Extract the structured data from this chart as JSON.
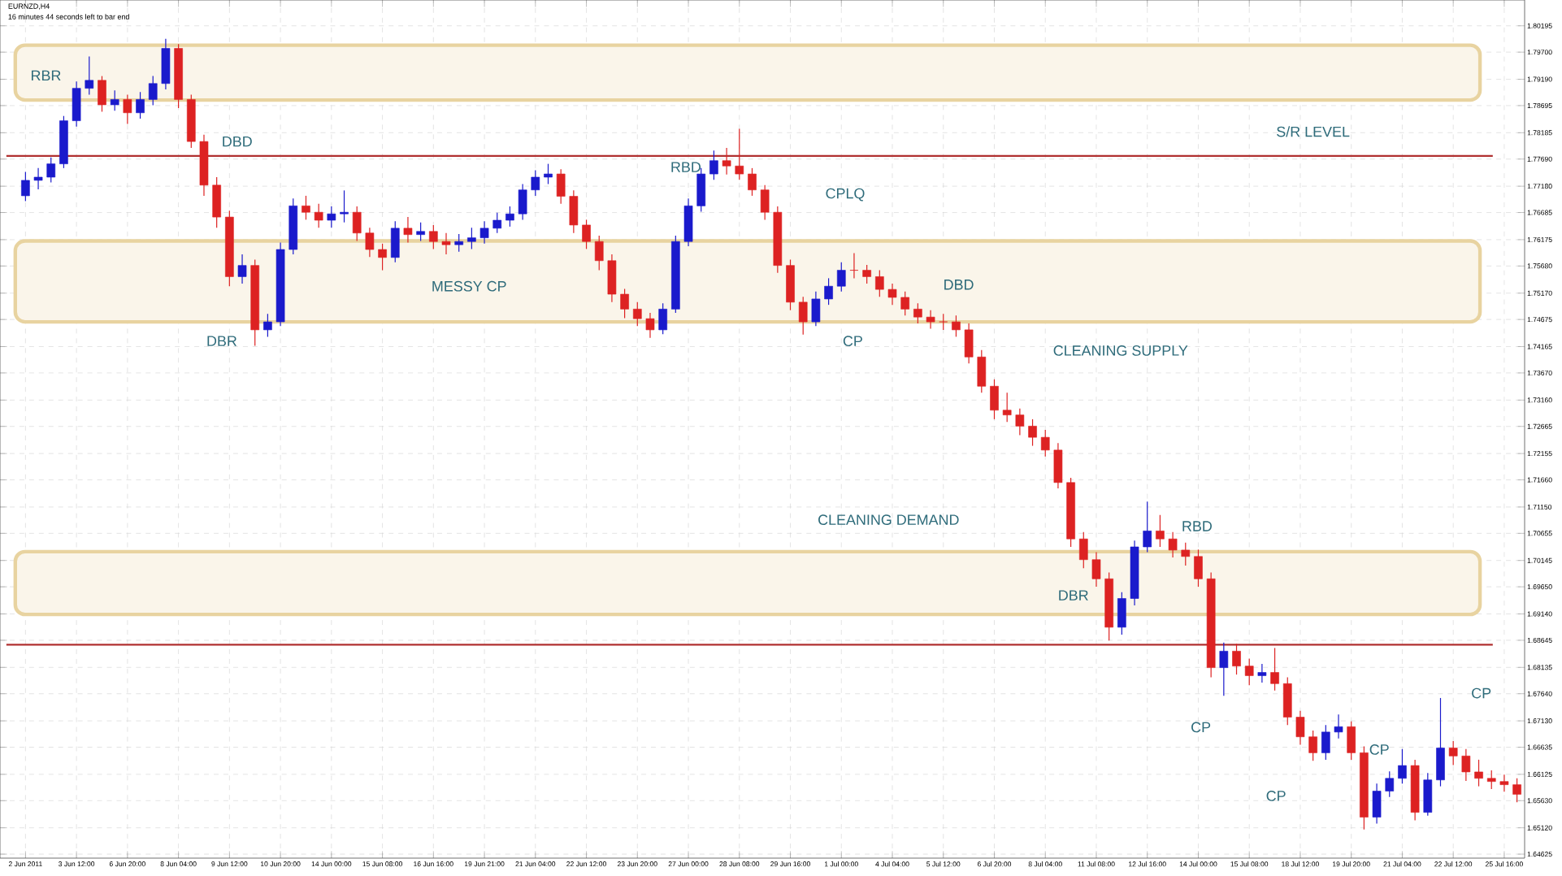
{
  "chart_data": {
    "type": "candlestick",
    "title": "EURNZD,H4",
    "subtitle": "16 minutes 44 seconds left to bar end",
    "categories": [
      "2 Jun 2011",
      null,
      null,
      null,
      "3 Jun 12:00",
      null,
      null,
      null,
      "6 Jun 20:00",
      null,
      null,
      null,
      "8 Jun 04:00",
      null,
      null,
      null,
      "9 Jun 12:00",
      null,
      null,
      null,
      "10 Jun 20:00",
      null,
      null,
      null,
      "14 Jun 00:00",
      null,
      null,
      null,
      "15 Jun 08:00",
      null,
      null,
      null,
      "16 Jun 16:00",
      null,
      null,
      null,
      "19 Jun 21:00",
      null,
      null,
      null,
      "21 Jun 04:00",
      null,
      null,
      null,
      "22 Jun 12:00",
      null,
      null,
      null,
      "23 Jun 20:00",
      null,
      null,
      null,
      "27 Jun 00:00",
      null,
      null,
      null,
      "28 Jun 08:00",
      null,
      null,
      null,
      "29 Jun 16:00",
      null,
      null,
      null,
      "1 Jul 00:00",
      null,
      null,
      null,
      "4 Jul 04:00",
      null,
      null,
      null,
      "5 Jul 12:00",
      null,
      null,
      null,
      "6 Jul 20:00",
      null,
      null,
      null,
      "8 Jul 04:00",
      null,
      null,
      null,
      "11 Jul 08:00",
      null,
      null,
      null,
      "12 Jul 16:00",
      null,
      null,
      null,
      "14 Jul 00:00",
      null,
      null,
      null,
      "15 Jul 08:00",
      null,
      null,
      null,
      "18 Jul 12:00",
      null,
      null,
      null,
      "19 Jul 20:00",
      null,
      null,
      null,
      "21 Jul 04:00",
      null,
      null,
      null,
      "22 Jul 12:00",
      null,
      null,
      null,
      "25 Jul 16:00",
      null
    ],
    "ohlc": [
      [
        1.77,
        1.7745,
        1.769,
        1.7729
      ],
      [
        1.7729,
        1.7752,
        1.7712,
        1.7735
      ],
      [
        1.7735,
        1.7772,
        1.7725,
        1.776
      ],
      [
        1.776,
        1.785,
        1.7752,
        1.7841
      ],
      [
        1.7841,
        1.7915,
        1.783,
        1.7902
      ],
      [
        1.7902,
        1.7962,
        1.789,
        1.7917
      ],
      [
        1.7917,
        1.7925,
        1.7858,
        1.7871
      ],
      [
        1.7871,
        1.7898,
        1.786,
        1.7881
      ],
      [
        1.7881,
        1.789,
        1.7835,
        1.7856
      ],
      [
        1.7856,
        1.7895,
        1.7845,
        1.7881
      ],
      [
        1.7881,
        1.7925,
        1.787,
        1.7911
      ],
      [
        1.7911,
        1.7995,
        1.79,
        1.7977
      ],
      [
        1.7977,
        1.7985,
        1.7865,
        1.7881
      ],
      [
        1.7881,
        1.789,
        1.779,
        1.7802
      ],
      [
        1.7802,
        1.7815,
        1.77,
        1.772
      ],
      [
        1.772,
        1.7735,
        1.764,
        1.766
      ],
      [
        1.766,
        1.7672,
        1.753,
        1.7548
      ],
      [
        1.7548,
        1.759,
        1.7535,
        1.7569
      ],
      [
        1.7569,
        1.758,
        1.7418,
        1.7448
      ],
      [
        1.7448,
        1.7478,
        1.7435,
        1.7463
      ],
      [
        1.7463,
        1.7612,
        1.7455,
        1.7599
      ],
      [
        1.7599,
        1.7695,
        1.759,
        1.7681
      ],
      [
        1.7681,
        1.77,
        1.7655,
        1.7669
      ],
      [
        1.7669,
        1.7685,
        1.764,
        1.7654
      ],
      [
        1.7654,
        1.768,
        1.764,
        1.7666
      ],
      [
        1.7666,
        1.771,
        1.765,
        1.7669
      ],
      [
        1.7669,
        1.768,
        1.7615,
        1.763
      ],
      [
        1.763,
        1.764,
        1.7585,
        1.7599
      ],
      [
        1.7599,
        1.761,
        1.756,
        1.7584
      ],
      [
        1.7584,
        1.7652,
        1.7575,
        1.7639
      ],
      [
        1.7639,
        1.766,
        1.7612,
        1.7627
      ],
      [
        1.7627,
        1.765,
        1.7615,
        1.7633
      ],
      [
        1.7633,
        1.7645,
        1.76,
        1.7614
      ],
      [
        1.7614,
        1.763,
        1.759,
        1.7608
      ],
      [
        1.7608,
        1.7628,
        1.7595,
        1.7614
      ],
      [
        1.7614,
        1.764,
        1.76,
        1.7621
      ],
      [
        1.7621,
        1.7652,
        1.761,
        1.7639
      ],
      [
        1.7639,
        1.7668,
        1.763,
        1.7654
      ],
      [
        1.7654,
        1.768,
        1.7642,
        1.7666
      ],
      [
        1.7666,
        1.7722,
        1.7655,
        1.7711
      ],
      [
        1.7711,
        1.7748,
        1.77,
        1.7735
      ],
      [
        1.7735,
        1.776,
        1.7722,
        1.7741
      ],
      [
        1.7741,
        1.775,
        1.7685,
        1.7699
      ],
      [
        1.7699,
        1.771,
        1.763,
        1.7645
      ],
      [
        1.7645,
        1.7655,
        1.76,
        1.7614
      ],
      [
        1.7614,
        1.7625,
        1.756,
        1.7578
      ],
      [
        1.7578,
        1.759,
        1.75,
        1.7515
      ],
      [
        1.7515,
        1.7525,
        1.747,
        1.7487
      ],
      [
        1.7487,
        1.75,
        1.7455,
        1.7469
      ],
      [
        1.7469,
        1.748,
        1.7433,
        1.7448
      ],
      [
        1.7448,
        1.7498,
        1.744,
        1.7487
      ],
      [
        1.7487,
        1.7625,
        1.748,
        1.7614
      ],
      [
        1.7614,
        1.7695,
        1.7605,
        1.7681
      ],
      [
        1.7681,
        1.7752,
        1.767,
        1.7741
      ],
      [
        1.7741,
        1.7785,
        1.773,
        1.7766
      ],
      [
        1.7766,
        1.779,
        1.774,
        1.7756
      ],
      [
        1.7756,
        1.7826,
        1.773,
        1.7741
      ],
      [
        1.7741,
        1.7752,
        1.77,
        1.7711
      ],
      [
        1.7711,
        1.772,
        1.7655,
        1.7669
      ],
      [
        1.7669,
        1.768,
        1.7555,
        1.7569
      ],
      [
        1.7569,
        1.758,
        1.7485,
        1.75
      ],
      [
        1.75,
        1.751,
        1.7439,
        1.7463
      ],
      [
        1.7463,
        1.752,
        1.7455,
        1.7506
      ],
      [
        1.7506,
        1.7545,
        1.7495,
        1.753
      ],
      [
        1.753,
        1.7575,
        1.752,
        1.756
      ],
      [
        1.756,
        1.7592,
        1.7545,
        1.756
      ],
      [
        1.756,
        1.757,
        1.7535,
        1.7548
      ],
      [
        1.7548,
        1.756,
        1.751,
        1.7524
      ],
      [
        1.7524,
        1.7535,
        1.7495,
        1.7509
      ],
      [
        1.7509,
        1.752,
        1.7475,
        1.7487
      ],
      [
        1.7487,
        1.7498,
        1.746,
        1.7472
      ],
      [
        1.7472,
        1.7485,
        1.745,
        1.7463
      ],
      [
        1.7463,
        1.7478,
        1.7448,
        1.7463
      ],
      [
        1.7463,
        1.7475,
        1.7435,
        1.7448
      ],
      [
        1.7448,
        1.746,
        1.7385,
        1.7397
      ],
      [
        1.7397,
        1.741,
        1.733,
        1.7342
      ],
      [
        1.7342,
        1.7355,
        1.728,
        1.7297
      ],
      [
        1.7297,
        1.733,
        1.7275,
        1.7288
      ],
      [
        1.7288,
        1.73,
        1.725,
        1.7267
      ],
      [
        1.7267,
        1.728,
        1.723,
        1.7246
      ],
      [
        1.7246,
        1.726,
        1.721,
        1.7222
      ],
      [
        1.7222,
        1.7235,
        1.715,
        1.7161
      ],
      [
        1.7161,
        1.717,
        1.704,
        1.7055
      ],
      [
        1.7055,
        1.7068,
        1.7,
        1.7016
      ],
      [
        1.7016,
        1.703,
        1.6965,
        1.698
      ],
      [
        1.698,
        1.6992,
        1.6864,
        1.6889
      ],
      [
        1.6889,
        1.6955,
        1.6875,
        1.6943
      ],
      [
        1.6943,
        1.7052,
        1.693,
        1.704
      ],
      [
        1.704,
        1.7125,
        1.703,
        1.707
      ],
      [
        1.707,
        1.71,
        1.704,
        1.7055
      ],
      [
        1.7055,
        1.7068,
        1.702,
        1.7034
      ],
      [
        1.7034,
        1.7048,
        1.7005,
        1.7022
      ],
      [
        1.7022,
        1.7035,
        1.6965,
        1.698
      ],
      [
        1.698,
        1.6992,
        1.6795,
        1.6813
      ],
      [
        1.6813,
        1.686,
        1.676,
        1.6844
      ],
      [
        1.6844,
        1.6858,
        1.68,
        1.6816
      ],
      [
        1.6816,
        1.683,
        1.678,
        1.6798
      ],
      [
        1.6798,
        1.682,
        1.6785,
        1.6804
      ],
      [
        1.6804,
        1.685,
        1.677,
        1.6783
      ],
      [
        1.6783,
        1.6795,
        1.6705,
        1.672
      ],
      [
        1.672,
        1.6732,
        1.6668,
        1.6683
      ],
      [
        1.6683,
        1.6695,
        1.6638,
        1.6653
      ],
      [
        1.6653,
        1.6705,
        1.664,
        1.6692
      ],
      [
        1.6692,
        1.6725,
        1.668,
        1.6702
      ],
      [
        1.6702,
        1.6712,
        1.664,
        1.6653
      ],
      [
        1.6653,
        1.6665,
        1.6509,
        1.6532
      ],
      [
        1.6532,
        1.6595,
        1.652,
        1.6581
      ],
      [
        1.6581,
        1.6618,
        1.657,
        1.6605
      ],
      [
        1.6605,
        1.666,
        1.6595,
        1.6629
      ],
      [
        1.6629,
        1.664,
        1.6526,
        1.6541
      ],
      [
        1.6541,
        1.6615,
        1.6535,
        1.6602
      ],
      [
        1.6602,
        1.6756,
        1.659,
        1.6662
      ],
      [
        1.6662,
        1.6675,
        1.663,
        1.6647
      ],
      [
        1.6647,
        1.666,
        1.66,
        1.6617
      ],
      [
        1.6617,
        1.664,
        1.659,
        1.6605
      ],
      [
        1.6605,
        1.662,
        1.6585,
        1.6599
      ],
      [
        1.6599,
        1.6612,
        1.658,
        1.6593
      ],
      [
        1.6593,
        1.6605,
        1.656,
        1.6575
      ]
    ],
    "colors": [
      "#1a1acc",
      "#1a1acc",
      "#1a1acc",
      "#1a1acc",
      "#1a1acc",
      "#1a1acc",
      "#dd2222",
      "#1a1acc",
      "#dd2222",
      "#1a1acc",
      "#1a1acc",
      "#1a1acc",
      "#dd2222",
      "#dd2222",
      "#dd2222",
      "#dd2222",
      "#dd2222",
      "#1a1acc",
      "#dd2222",
      "#1a1acc",
      "#1a1acc",
      "#1a1acc",
      "#dd2222",
      "#dd2222",
      "#1a1acc",
      "#1a1acc",
      "#dd2222",
      "#dd2222",
      "#dd2222",
      "#1a1acc",
      "#dd2222",
      "#1a1acc",
      "#dd2222",
      "#dd2222",
      "#1a1acc",
      "#1a1acc",
      "#1a1acc",
      "#1a1acc",
      "#1a1acc",
      "#1a1acc",
      "#1a1acc",
      "#1a1acc",
      "#dd2222",
      "#dd2222",
      "#dd2222",
      "#dd2222",
      "#dd2222",
      "#dd2222",
      "#dd2222",
      "#dd2222",
      "#1a1acc",
      "#1a1acc",
      "#1a1acc",
      "#1a1acc",
      "#1a1acc",
      "#dd2222",
      "#dd2222",
      "#dd2222",
      "#dd2222",
      "#dd2222",
      "#dd2222",
      "#dd2222",
      "#1a1acc",
      "#1a1acc",
      "#1a1acc",
      "#dd2222",
      "#dd2222",
      "#dd2222",
      "#dd2222",
      "#dd2222",
      "#dd2222",
      "#dd2222",
      "#dd2222",
      "#dd2222",
      "#dd2222",
      "#dd2222",
      "#dd2222",
      "#dd2222",
      "#dd2222",
      "#dd2222",
      "#dd2222",
      "#dd2222",
      "#dd2222",
      "#dd2222",
      "#dd2222",
      "#dd2222",
      "#1a1acc",
      "#1a1acc",
      "#1a1acc",
      "#dd2222",
      "#dd2222",
      "#dd2222",
      "#dd2222",
      "#dd2222",
      "#1a1acc",
      "#dd2222",
      "#dd2222",
      "#1a1acc",
      "#dd2222",
      "#dd2222",
      "#dd2222",
      "#dd2222",
      "#1a1acc",
      "#1a1acc",
      "#dd2222",
      "#dd2222",
      "#1a1acc",
      "#1a1acc",
      "#1a1acc",
      "#dd2222",
      "#1a1acc",
      "#1a1acc",
      "#dd2222",
      "#dd2222",
      "#dd2222",
      "#dd2222",
      "#dd2222",
      "#dd2222"
    ],
    "ylim": [
      1.6455,
      1.8068
    ],
    "yticks": [
      1.64625,
      {
        "value": 1.6512,
        "label": "1.65120"
      },
      {
        "value": 1.6563,
        "label": "1.65630"
      },
      1.66125,
      1.66635,
      {
        "value": 1.6713,
        "label": "1.67130"
      },
      {
        "value": 1.6764,
        "label": "1.67640"
      },
      1.68135,
      1.68645,
      {
        "value": 1.6914,
        "label": "1.69140"
      },
      {
        "value": 1.6965,
        "label": "1.69650"
      },
      1.70145,
      1.70655,
      {
        "value": 1.7115,
        "label": "1.71150"
      },
      {
        "value": 1.7166,
        "label": "1.71660"
      },
      1.72155,
      1.72665,
      {
        "value": 1.7316,
        "label": "1.73160"
      },
      {
        "value": 1.7367,
        "label": "1.73670"
      },
      1.74165,
      1.74675,
      {
        "value": 1.7517,
        "label": "1.75170"
      },
      {
        "value": 1.7568,
        "label": "1.75680"
      },
      1.76175,
      1.76685,
      {
        "value": 1.7718,
        "label": "1.77180"
      },
      {
        "value": 1.7769,
        "label": "1.77690"
      },
      1.78185,
      1.78695,
      {
        "value": 1.7919,
        "label": "1.79190"
      },
      {
        "value": 1.797,
        "label": "1.79700"
      },
      1.80195
    ],
    "grid": true,
    "ref_lines": [
      {
        "axis": "y",
        "value": 1.7775,
        "label": "S/R LEVEL",
        "color": "#b03030"
      },
      {
        "axis": "y",
        "value": 1.6856,
        "color": "#b03030"
      }
    ],
    "bands": [
      {
        "axis": "y",
        "from": 1.788,
        "to": 1.7983,
        "color": "#e8d3a0"
      },
      {
        "axis": "y",
        "from": 1.7463,
        "to": 1.7615,
        "color": "#e8d3a0"
      },
      {
        "axis": "y",
        "from": 1.6913,
        "to": 1.7031,
        "color": "#e8d3a0"
      }
    ],
    "annotations": [
      "RBR",
      "DBD",
      "DBR",
      "MESSY CP",
      "RBD",
      "CPLQ",
      "CP",
      "DBD",
      "CLEANING SUPPLY",
      "CLEANING DEMAND",
      "RBD",
      "DBR",
      "CP",
      "CP",
      "CP",
      "CP"
    ]
  }
}
